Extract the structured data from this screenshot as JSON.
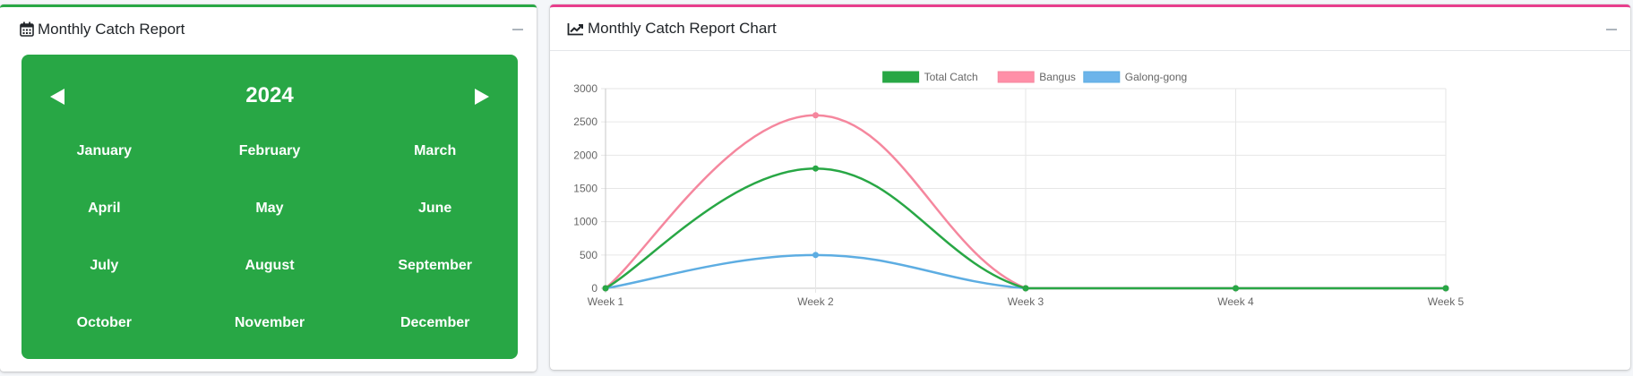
{
  "calendar_card": {
    "title": "Monthly Catch Report",
    "year": "2024",
    "months": [
      "January",
      "February",
      "March",
      "April",
      "May",
      "June",
      "July",
      "August",
      "September",
      "October",
      "November",
      "December"
    ]
  },
  "chart_card": {
    "title": "Monthly Catch Report Chart"
  },
  "colors": {
    "calendar_accent": "#28a745",
    "chart_accent": "#e83e8c"
  },
  "chart_data": {
    "type": "line",
    "x": [
      "Week 1",
      "Week 2",
      "Week 3",
      "Week 4",
      "Week 5"
    ],
    "ylim": [
      0,
      3000
    ],
    "yticks": [
      0,
      500,
      1000,
      1500,
      2000,
      2500,
      3000
    ],
    "grid": true,
    "legend_position": "top",
    "curve": "smooth",
    "series": [
      {
        "name": "Total Catch",
        "values": [
          0,
          1800,
          0,
          0,
          0
        ],
        "color": "#28a745",
        "fill": "#28a745"
      },
      {
        "name": "Bangus",
        "values": [
          0,
          2600,
          0,
          0,
          0
        ],
        "color": "#f5879e",
        "fill": "#ff8fa8"
      },
      {
        "name": "Galong-gong",
        "values": [
          0,
          500,
          0,
          0,
          0
        ],
        "color": "#5dade2",
        "fill": "#6cb4ea"
      }
    ]
  }
}
